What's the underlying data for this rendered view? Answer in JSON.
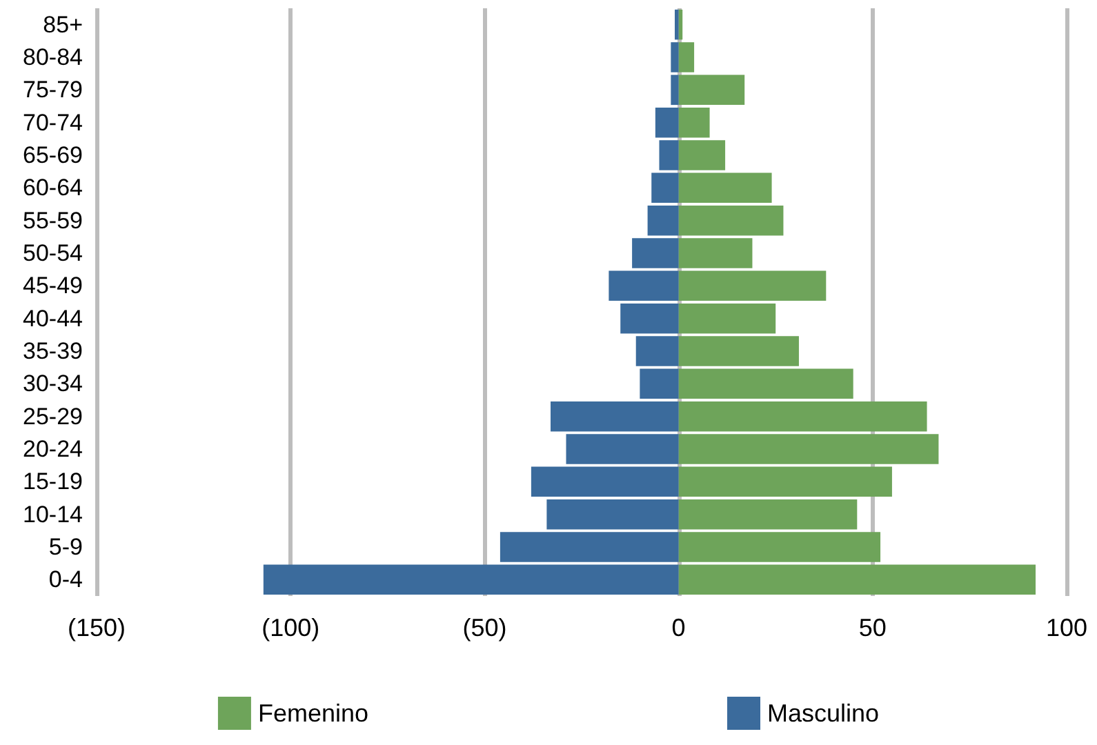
{
  "chart_data": {
    "type": "bar",
    "orientation": "horizontal",
    "stacked": true,
    "categories": [
      "85+",
      "80-84",
      "75-79",
      "70-74",
      "65-69",
      "60-64",
      "55-59",
      "50-54",
      "45-49",
      "40-44",
      "35-39",
      "30-34",
      "25-29",
      "20-24",
      "15-19",
      "10-14",
      "5-9",
      "0-4"
    ],
    "series": [
      {
        "name": "Femenino",
        "color": "#6ea45a",
        "values": [
          1,
          4,
          17,
          8,
          12,
          24,
          27,
          19,
          38,
          25,
          31,
          45,
          64,
          67,
          55,
          46,
          52,
          92
        ]
      },
      {
        "name": "Masculino",
        "color": "#3b6b9c",
        "values": [
          -1,
          -2,
          -2,
          -6,
          -5,
          -7,
          -8,
          -12,
          -18,
          -15,
          -11,
          -10,
          -33,
          -29,
          -38,
          -34,
          -46,
          -107
        ]
      }
    ],
    "xlim": [
      -150,
      100
    ],
    "xticks": [
      {
        "value": -150,
        "label": "(150)"
      },
      {
        "value": -100,
        "label": "(100)"
      },
      {
        "value": -50,
        "label": "(50)"
      },
      0,
      50,
      100
    ],
    "grid": "x",
    "legend": "bottom"
  }
}
